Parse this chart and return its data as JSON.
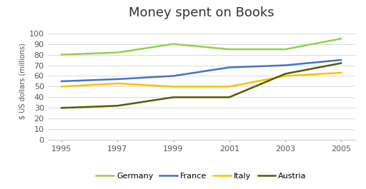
{
  "title": "Money spent on Books",
  "ylabel": "$ US dollars (millions)",
  "years": [
    1995,
    1997,
    1999,
    2001,
    2003,
    2005
  ],
  "series": {
    "Germany": {
      "values": [
        80,
        82,
        90,
        85,
        85,
        95
      ],
      "color": "#92d050",
      "linewidth": 1.8
    },
    "France": {
      "values": [
        55,
        57,
        60,
        68,
        70,
        75
      ],
      "color": "#4472c4",
      "linewidth": 1.8
    },
    "Italy": {
      "values": [
        50,
        53,
        50,
        50,
        60,
        63
      ],
      "color": "#ffc000",
      "linewidth": 1.8
    },
    "Austria": {
      "values": [
        30,
        32,
        40,
        40,
        62,
        72
      ],
      "color": "#595900",
      "linewidth": 1.8
    }
  },
  "ylim": [
    0,
    110
  ],
  "yticks": [
    0,
    10,
    20,
    30,
    40,
    50,
    60,
    70,
    80,
    90,
    100
  ],
  "background_color": "#ffffff",
  "grid_color": "#d3d3d3",
  "title_fontsize": 13,
  "tick_fontsize": 8,
  "ylabel_fontsize": 7,
  "legend_fontsize": 8,
  "legend_order": [
    "Germany",
    "France",
    "Italy",
    "Austria"
  ]
}
